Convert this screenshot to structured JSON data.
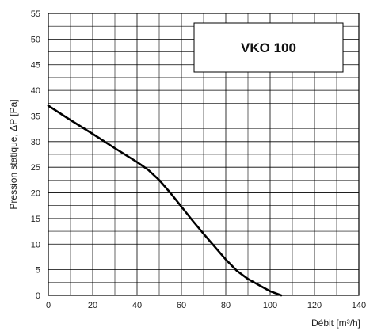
{
  "chart_data": {
    "type": "line",
    "xlabel": "Débit [m³/h]",
    "ylabel": "Pression statique, ΔP [Pa]",
    "xlim": [
      0,
      140
    ],
    "ylim": [
      0,
      55
    ],
    "x_ticks": [
      0,
      20,
      40,
      60,
      80,
      100,
      120,
      140
    ],
    "y_ticks": [
      0,
      5,
      10,
      15,
      20,
      25,
      30,
      35,
      40,
      45,
      50,
      55
    ],
    "grid": true,
    "annotation": "VKO 100",
    "series": [
      {
        "x": [
          0,
          10,
          20,
          30,
          40,
          45,
          50,
          55,
          60,
          65,
          70,
          75,
          80,
          85,
          90,
          95,
          100,
          105
        ],
        "y": [
          37,
          34.2,
          31.5,
          28.7,
          26,
          24.5,
          22.5,
          20,
          17.3,
          14.6,
          12,
          9.5,
          7,
          4.8,
          3.2,
          2,
          0.8,
          0
        ]
      }
    ]
  }
}
